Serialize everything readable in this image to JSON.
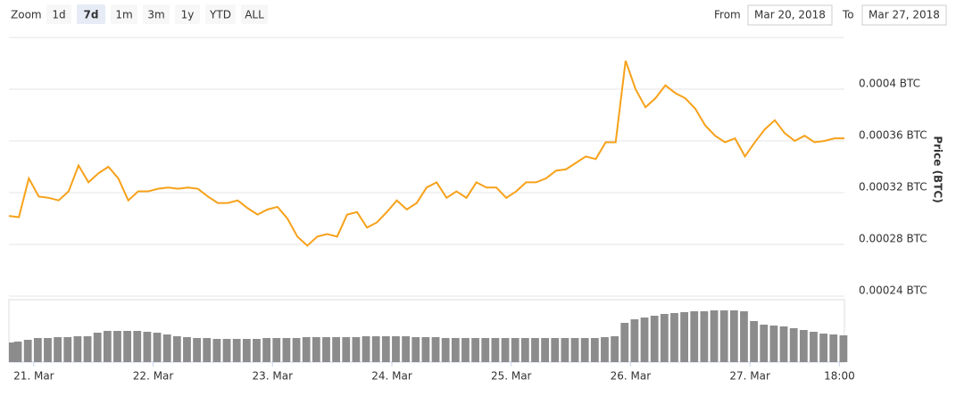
{
  "range_selector": {
    "label": "Zoom",
    "buttons": [
      "1d",
      "7d",
      "1m",
      "3m",
      "1y",
      "YTD",
      "ALL"
    ],
    "selected": "7d"
  },
  "date_range": {
    "from_label": "From",
    "from": "Mar 20, 2018",
    "to_label": "To",
    "to": "Mar 27, 2018"
  },
  "chart_data": [
    {
      "type": "line",
      "color": "#f7a11a",
      "y_label": "Price (BTC)",
      "x": [
        "2018-03-20T19:00",
        "2018-03-20T21:00",
        "2018-03-20T23:00",
        "2018-03-21T01:00",
        "2018-03-21T03:00",
        "2018-03-21T05:00",
        "2018-03-21T07:00",
        "2018-03-21T09:00",
        "2018-03-21T11:00",
        "2018-03-21T13:00",
        "2018-03-21T15:00",
        "2018-03-21T17:00",
        "2018-03-21T19:00",
        "2018-03-21T21:00",
        "2018-03-21T23:00",
        "2018-03-22T01:00",
        "2018-03-22T03:00",
        "2018-03-22T05:00",
        "2018-03-22T07:00",
        "2018-03-22T09:00",
        "2018-03-22T11:00",
        "2018-03-22T13:00",
        "2018-03-22T15:00",
        "2018-03-22T17:00",
        "2018-03-22T19:00",
        "2018-03-22T21:00",
        "2018-03-22T23:00",
        "2018-03-23T01:00",
        "2018-03-23T03:00",
        "2018-03-23T05:00",
        "2018-03-23T07:00",
        "2018-03-23T09:00",
        "2018-03-23T11:00",
        "2018-03-23T13:00",
        "2018-03-23T15:00",
        "2018-03-23T17:00",
        "2018-03-23T19:00",
        "2018-03-23T21:00",
        "2018-03-23T23:00",
        "2018-03-24T01:00",
        "2018-03-24T03:00",
        "2018-03-24T05:00",
        "2018-03-24T07:00",
        "2018-03-24T09:00",
        "2018-03-24T11:00",
        "2018-03-24T13:00",
        "2018-03-24T15:00",
        "2018-03-24T17:00",
        "2018-03-24T19:00",
        "2018-03-24T21:00",
        "2018-03-24T23:00",
        "2018-03-25T01:00",
        "2018-03-25T03:00",
        "2018-03-25T05:00",
        "2018-03-25T07:00",
        "2018-03-25T09:00",
        "2018-03-25T11:00",
        "2018-03-25T13:00",
        "2018-03-25T15:00",
        "2018-03-25T17:00",
        "2018-03-25T19:00",
        "2018-03-25T21:00",
        "2018-03-25T23:00",
        "2018-03-26T01:00",
        "2018-03-26T03:00",
        "2018-03-26T05:00",
        "2018-03-26T07:00",
        "2018-03-26T09:00",
        "2018-03-26T11:00",
        "2018-03-26T13:00",
        "2018-03-26T15:00",
        "2018-03-26T17:00",
        "2018-03-26T19:00",
        "2018-03-26T21:00",
        "2018-03-26T23:00",
        "2018-03-27T01:00",
        "2018-03-27T03:00",
        "2018-03-27T05:00",
        "2018-03-27T07:00",
        "2018-03-27T09:00",
        "2018-03-27T11:00",
        "2018-03-27T13:00",
        "2018-03-27T15:00",
        "2018-03-27T17:00",
        "2018-03-27T19:00"
      ],
      "values": [
        0.000302,
        0.000301,
        0.000331,
        0.000317,
        0.000316,
        0.000314,
        0.000321,
        0.000341,
        0.000328,
        0.000335,
        0.00034,
        0.000331,
        0.000314,
        0.000321,
        0.000321,
        0.000323,
        0.000324,
        0.000323,
        0.000324,
        0.000323,
        0.000317,
        0.000312,
        0.000312,
        0.000314,
        0.000308,
        0.000303,
        0.000307,
        0.000309,
        0.0003,
        0.000286,
        0.000279,
        0.000286,
        0.000288,
        0.000286,
        0.000303,
        0.000305,
        0.000293,
        0.000297,
        0.000305,
        0.000314,
        0.000307,
        0.000312,
        0.000324,
        0.000328,
        0.000316,
        0.000321,
        0.000316,
        0.000328,
        0.000324,
        0.000324,
        0.000316,
        0.000321,
        0.000328,
        0.000328,
        0.000331,
        0.000337,
        0.000338,
        0.000343,
        0.000348,
        0.000346,
        0.000359,
        0.000359,
        0.000422,
        0.0004,
        0.000386,
        0.000393,
        0.000403,
        0.000397,
        0.000393,
        0.000385,
        0.000372,
        0.000364,
        0.000359,
        0.000362,
        0.000348,
        0.000359,
        0.000369,
        0.000376,
        0.000366,
        0.00036,
        0.000364,
        0.000359,
        0.00036,
        0.000362,
        0.000362
      ],
      "xlim": [
        "2018-03-20T19:00",
        "2018-03-27T19:00"
      ],
      "xticks": [
        {
          "value": "2018-03-21T00:00",
          "label": "21. Mar"
        },
        {
          "value": "2018-03-22T00:00",
          "label": "22. Mar"
        },
        {
          "value": "2018-03-23T00:00",
          "label": "23. Mar"
        },
        {
          "value": "2018-03-24T00:00",
          "label": "24. Mar"
        },
        {
          "value": "2018-03-25T00:00",
          "label": "25. Mar"
        },
        {
          "value": "2018-03-26T00:00",
          "label": "26. Mar"
        },
        {
          "value": "2018-03-27T00:00",
          "label": "27. Mar"
        },
        {
          "value": "2018-03-27T18:00",
          "label": "18:00"
        }
      ],
      "ylim": [
        0.00024,
        0.00044
      ],
      "yticks": [
        {
          "value": 0.00024,
          "label": "0.00024 BTC"
        },
        {
          "value": 0.00028,
          "label": "0.00028 BTC"
        },
        {
          "value": 0.00032,
          "label": "0.00032 BTC"
        },
        {
          "value": 0.00036,
          "label": "0.00036 BTC"
        },
        {
          "value": 0.0004,
          "label": "0.0004 BTC"
        }
      ],
      "grid": true
    },
    {
      "type": "bar",
      "color": "#8c8c8c",
      "values": [
        22,
        23,
        25,
        27,
        27,
        28,
        28,
        29,
        29,
        33,
        35,
        35,
        35,
        35,
        34,
        33,
        31,
        29,
        28,
        27,
        27,
        26,
        26,
        26,
        26,
        26,
        27,
        27,
        27,
        27,
        28,
        28,
        28,
        28,
        28,
        28,
        29,
        29,
        29,
        29,
        29,
        28,
        28,
        28,
        27,
        27,
        27,
        27,
        27,
        27,
        27,
        27,
        27,
        27,
        27,
        27,
        27,
        27,
        27,
        27,
        28,
        29,
        44,
        48,
        50,
        52,
        54,
        55,
        56,
        57,
        57,
        58,
        58,
        58,
        57,
        46,
        42,
        41,
        40,
        38,
        36,
        34,
        32,
        31,
        30
      ],
      "ylim": [
        0,
        70
      ]
    }
  ]
}
